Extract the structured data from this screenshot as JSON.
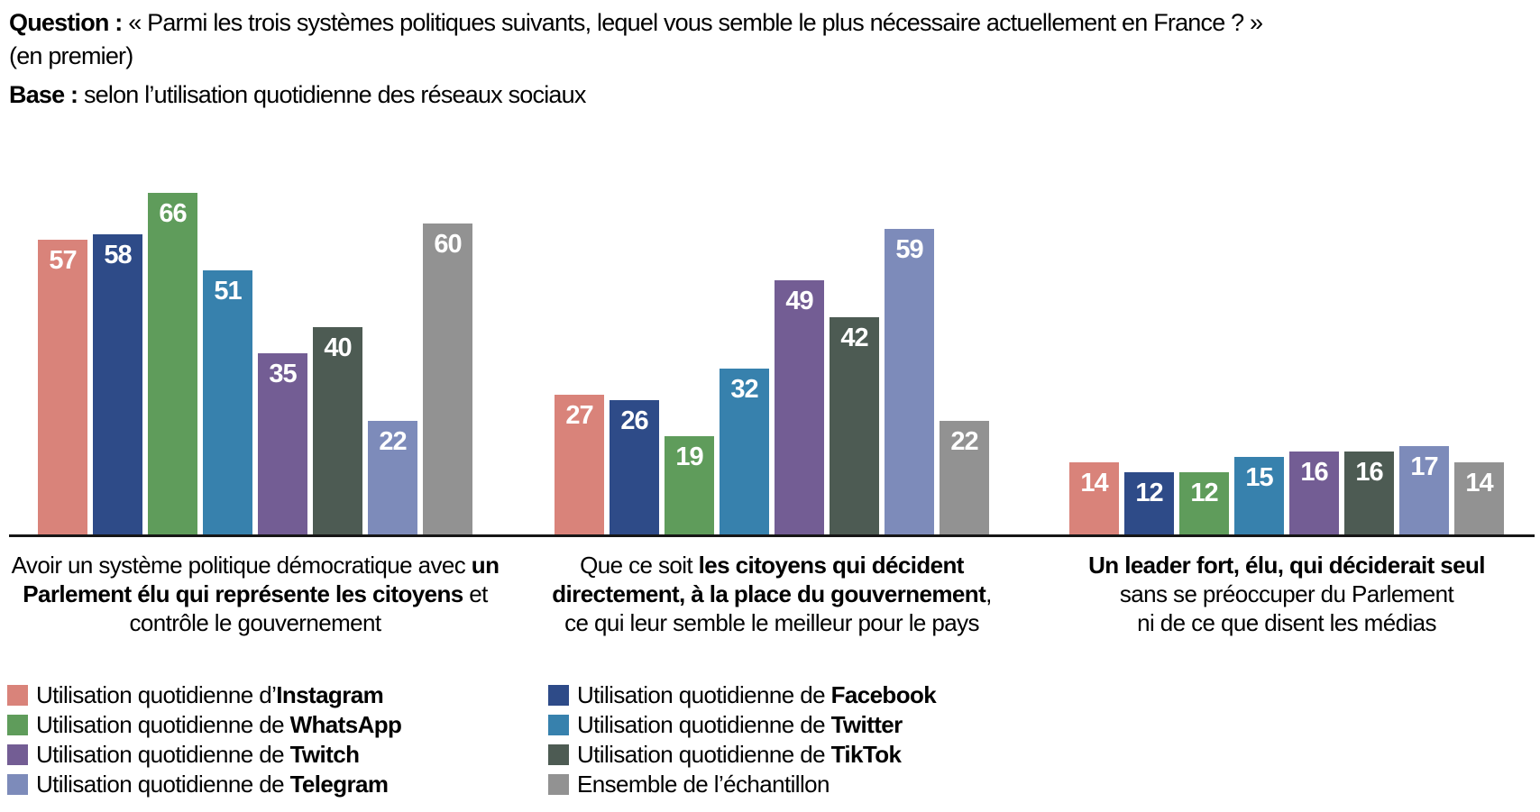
{
  "header": {
    "question_label": "Question :",
    "question_line1": "« Parmi les trois systèmes politiques suivants, lequel vous semble le plus nécessaire actuellement en France ? »",
    "question_line2": "(en premier)",
    "base_label": "Base :",
    "base_text": "selon l’utilisation quotidienne des réseaux sociaux"
  },
  "chart_data": {
    "type": "bar",
    "grid": false,
    "ylim": [
      0,
      70
    ],
    "legend_position": "bottom",
    "value_label_color": "#ffffff",
    "axis_line_color": "#161616",
    "categories": [
      "Avoir un système politique démocratique avec un Parlement élu qui représente les citoyens et contrôle le gouvernement",
      "Que ce soit les citoyens qui décident directement, à la place du gouvernement, ce qui leur semble le meilleur pour le pays",
      "Un leader fort, élu, qui déciderait seul sans se préoccuper du Parlement ni de ce que disent les médias"
    ],
    "series": [
      {
        "key": "instagram",
        "name": "Utilisation quotidienne d’Instagram",
        "color": "#D9837A",
        "values": [
          57,
          27,
          14
        ]
      },
      {
        "key": "facebook",
        "name": "Utilisation quotidienne de Facebook",
        "color": "#2E4B88",
        "values": [
          58,
          26,
          12
        ]
      },
      {
        "key": "whatsapp",
        "name": "Utilisation quotidienne de WhatsApp",
        "color": "#5F9C5B",
        "values": [
          66,
          19,
          12
        ]
      },
      {
        "key": "twitter",
        "name": "Utilisation quotidienne de Twitter",
        "color": "#3781AD",
        "values": [
          51,
          32,
          15
        ]
      },
      {
        "key": "twitch",
        "name": "Utilisation quotidienne de Twitch",
        "color": "#735D94",
        "values": [
          35,
          49,
          16
        ]
      },
      {
        "key": "tiktok",
        "name": "Utilisation quotidienne de TikTok",
        "color": "#4D5B53",
        "values": [
          40,
          42,
          16
        ]
      },
      {
        "key": "telegram",
        "name": "Utilisation quotidienne de Telegram",
        "color": "#7D8BBA",
        "values": [
          22,
          59,
          17
        ]
      },
      {
        "key": "ensemble",
        "name": "Ensemble de l’échantillon",
        "color": "#929292",
        "values": [
          60,
          22,
          14
        ]
      }
    ]
  },
  "category_labels": [
    [
      [
        {
          "t": "Avoir un système politique démocratique avec ",
          "b": false
        },
        {
          "t": "un",
          "b": true
        }
      ],
      [
        {
          "t": "Parlement élu qui représente les citoyens",
          "b": true
        },
        {
          "t": " et",
          "b": false
        }
      ],
      [
        {
          "t": "contrôle le gouvernement",
          "b": false
        }
      ]
    ],
    [
      [
        {
          "t": "Que ce soit ",
          "b": false
        },
        {
          "t": "les citoyens qui décident",
          "b": true
        }
      ],
      [
        {
          "t": "directement, à la place du gouvernement",
          "b": true
        },
        {
          "t": ",",
          "b": false
        }
      ],
      [
        {
          "t": "ce qui leur semble le meilleur pour le pays",
          "b": false
        }
      ]
    ],
    [
      [
        {
          "t": "Un leader fort, élu, qui déciderait seul",
          "b": true
        }
      ],
      [
        {
          "t": "sans se préoccuper du Parlement",
          "b": false
        }
      ],
      [
        {
          "t": "ni de ce que disent les médias",
          "b": false
        }
      ]
    ]
  ],
  "legend": {
    "columns": [
      [
        {
          "key": "instagram",
          "pre": "Utilisation quotidienne d’",
          "bold": "Instagram",
          "color": "#D9837A"
        },
        {
          "key": "whatsapp",
          "pre": "Utilisation quotidienne de ",
          "bold": "WhatsApp",
          "color": "#5F9C5B"
        },
        {
          "key": "twitch",
          "pre": "Utilisation quotidienne de ",
          "bold": "Twitch",
          "color": "#735D94"
        },
        {
          "key": "telegram",
          "pre": "Utilisation quotidienne de ",
          "bold": "Telegram",
          "color": "#7D8BBA"
        }
      ],
      [
        {
          "key": "facebook",
          "pre": "Utilisation quotidienne de ",
          "bold": "Facebook",
          "color": "#2E4B88"
        },
        {
          "key": "twitter",
          "pre": "Utilisation quotidienne de ",
          "bold": "Twitter",
          "color": "#3781AD"
        },
        {
          "key": "tiktok",
          "pre": "Utilisation quotidienne de ",
          "bold": "TikTok",
          "color": "#4D5B53"
        },
        {
          "key": "ensemble",
          "pre": "Ensemble de l’échantillon",
          "bold": "",
          "color": "#929292"
        }
      ]
    ]
  }
}
